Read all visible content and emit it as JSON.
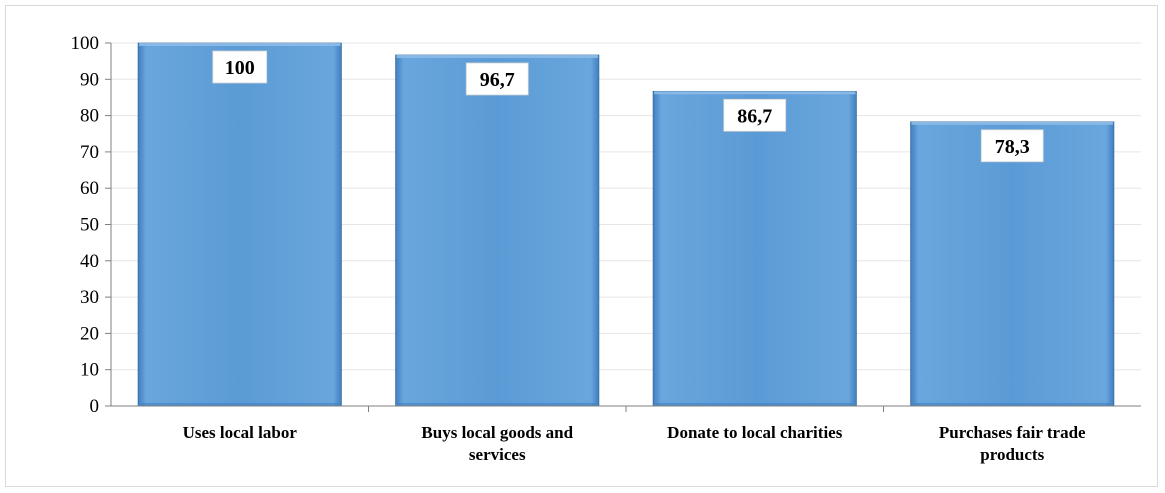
{
  "chart_data": {
    "type": "bar",
    "title": "",
    "xlabel": "",
    "ylabel": "",
    "categories": [
      [
        "Uses local labor"
      ],
      [
        "Buys local goods and",
        "services"
      ],
      [
        "Donate to local charities"
      ],
      [
        "Purchases fair trade",
        "products"
      ]
    ],
    "values": [
      100,
      96.7,
      86.7,
      78.3
    ],
    "data_labels": [
      "100",
      "96,7",
      "86,7",
      "78,3"
    ],
    "ylim": [
      0,
      100
    ],
    "yticks": [
      0,
      10,
      20,
      30,
      40,
      50,
      60,
      70,
      80,
      90,
      100
    ],
    "grid": true,
    "legend": "none",
    "colors": {
      "bar": "#5b9bd5",
      "bar_dark": "#3f7fbf",
      "bar_light": "#8dbbe8",
      "bar_edge": "#2e5f8f",
      "gridline": "#e6e6e6",
      "axis": "#808080",
      "label_box": "#ffffff"
    }
  }
}
